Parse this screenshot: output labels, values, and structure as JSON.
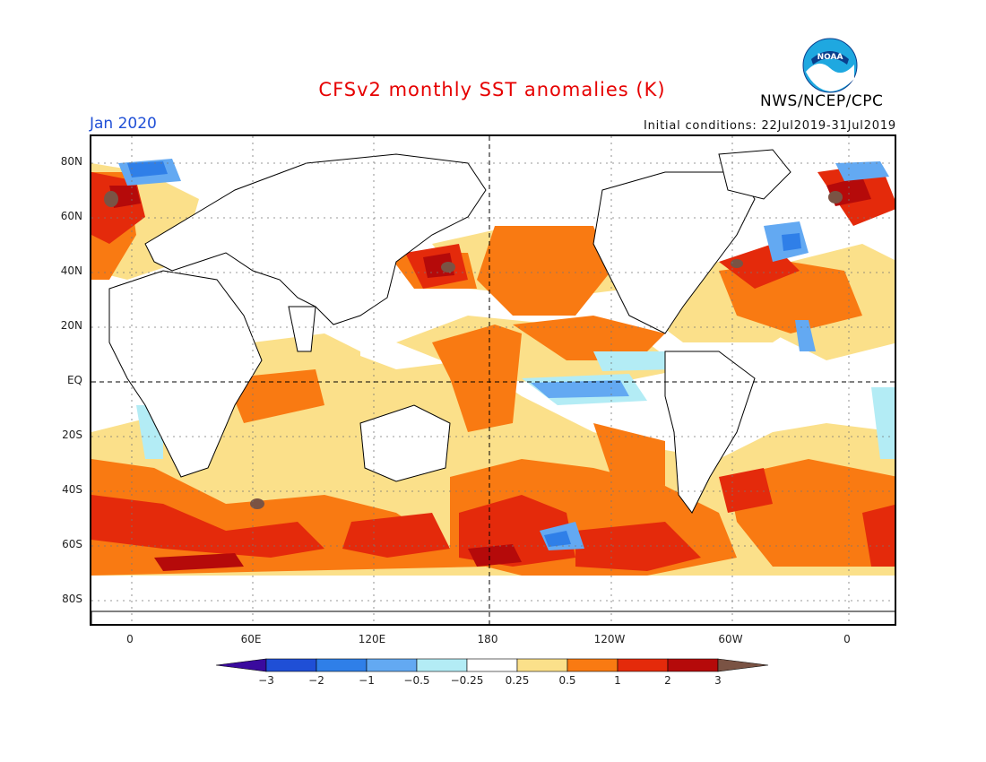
{
  "title": "CFSv2 monthly SST anomalies (K)",
  "agency": "NWS/NCEP/CPC",
  "logo_text": "NOAA",
  "month": "Jan 2020",
  "initial_conditions": "Initial conditions: 22Jul2019-31Jul2019",
  "lat_ticks": [
    "80N",
    "60N",
    "40N",
    "20N",
    "EQ",
    "20S",
    "40S",
    "60S",
    "80S"
  ],
  "lon_ticks": [
    "0",
    "60E",
    "120E",
    "180",
    "120W",
    "60W",
    "0"
  ],
  "colorbar": {
    "labels": [
      "−3",
      "−2",
      "−1",
      "−0.5",
      "−0.25",
      "0.25",
      "0.5",
      "1",
      "2",
      "3"
    ],
    "colors": [
      "#3a0a9e",
      "#1f4fd6",
      "#2f7fe8",
      "#63a9f2",
      "#b3ecf5",
      "#ffffff",
      "#fbe08a",
      "#f97a12",
      "#e42a0b",
      "#b50a0a",
      "#7a5344"
    ]
  },
  "map": {
    "colors": {
      "light_warm": "#fbe08a",
      "warm": "#f97a12",
      "hot": "#e42a0b",
      "very_hot": "#b50a0a",
      "extreme": "#7a5344",
      "cool": "#b3ecf5",
      "cold": "#63a9f2",
      "colder": "#2f7fe8"
    }
  }
}
